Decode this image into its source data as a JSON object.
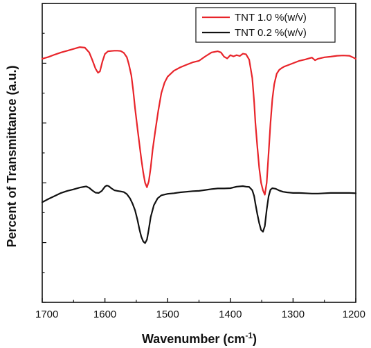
{
  "chart_data": {
    "type": "line",
    "title": "",
    "xlabel": "Wavenumber (cm",
    "xlabel_sup": "-1",
    "xlabel_close": ")",
    "ylabel": "Percent of Transmittance (a.u.)",
    "xlim": [
      1700,
      1200
    ],
    "x_reversed": true,
    "xticks": [
      1700,
      1600,
      1500,
      1400,
      1300,
      1200
    ],
    "y_tick_labels_shown": false,
    "ylim": [
      0,
      100
    ],
    "grid": false,
    "legend_position": "top-right",
    "series": [
      {
        "name": "TNT 1.0 %(w/v)",
        "color": "#e8242a",
        "x": [
          1700,
          1690,
          1680,
          1670,
          1660,
          1650,
          1640,
          1632,
          1625,
          1620,
          1615,
          1611,
          1608,
          1604,
          1600,
          1595,
          1590,
          1585,
          1580,
          1575,
          1570,
          1565,
          1562,
          1558,
          1555,
          1552,
          1548,
          1545,
          1542,
          1539,
          1536,
          1533,
          1530,
          1527,
          1524,
          1520,
          1515,
          1510,
          1505,
          1500,
          1490,
          1480,
          1470,
          1460,
          1450,
          1440,
          1430,
          1420,
          1415,
          1410,
          1405,
          1400,
          1395,
          1390,
          1385,
          1380,
          1375,
          1370,
          1365,
          1362,
          1360,
          1357,
          1354,
          1351,
          1348,
          1345,
          1342,
          1339,
          1336,
          1333,
          1330,
          1326,
          1322,
          1318,
          1314,
          1310,
          1300,
          1290,
          1280,
          1270,
          1265,
          1260,
          1250,
          1240,
          1230,
          1220,
          1210,
          1200
        ],
        "y": [
          81.5,
          82.1,
          82.9,
          83.6,
          84.2,
          84.8,
          85.4,
          85.2,
          83.6,
          81.0,
          78.2,
          76.8,
          77.3,
          80.6,
          83.1,
          84.0,
          84.1,
          84.2,
          84.2,
          84.1,
          83.5,
          82.0,
          79.8,
          76.0,
          71.0,
          65.0,
          58.0,
          53.0,
          48.0,
          43.5,
          40.0,
          38.5,
          40.5,
          45.0,
          51.0,
          57.0,
          64.0,
          70.0,
          73.5,
          75.5,
          77.5,
          78.6,
          79.5,
          80.3,
          80.8,
          82.3,
          83.6,
          84.0,
          83.6,
          82.2,
          81.6,
          82.7,
          82.3,
          82.7,
          82.4,
          83.2,
          83.0,
          81.2,
          75.0,
          67.0,
          60.0,
          52.0,
          45.0,
          40.0,
          37.5,
          36.0,
          40.0,
          50.0,
          60.0,
          68.0,
          73.0,
          76.5,
          77.8,
          78.4,
          78.9,
          79.2,
          80.0,
          80.8,
          81.3,
          81.9,
          81.0,
          81.5,
          82.0,
          82.2,
          82.5,
          82.6,
          82.5,
          81.5
        ]
      },
      {
        "name": "TNT 0.2 %(w/v)",
        "color": "#111111",
        "x": [
          1700,
          1690,
          1680,
          1670,
          1660,
          1650,
          1640,
          1630,
          1625,
          1620,
          1615,
          1610,
          1605,
          1600,
          1597,
          1594,
          1590,
          1585,
          1580,
          1575,
          1570,
          1565,
          1560,
          1556,
          1552,
          1548,
          1545,
          1542,
          1539,
          1536,
          1533,
          1530,
          1527,
          1522,
          1516,
          1510,
          1500,
          1490,
          1480,
          1470,
          1460,
          1450,
          1440,
          1430,
          1420,
          1410,
          1400,
          1390,
          1380,
          1375,
          1370,
          1365,
          1362,
          1360,
          1357,
          1354,
          1351,
          1348,
          1345,
          1342,
          1339,
          1336,
          1333,
          1328,
          1322,
          1316,
          1310,
          1300,
          1290,
          1280,
          1270,
          1260,
          1250,
          1240,
          1230,
          1220,
          1210,
          1200
        ],
        "y": [
          33.5,
          34.6,
          35.6,
          36.6,
          37.3,
          37.8,
          38.4,
          38.8,
          38.3,
          37.4,
          36.7,
          36.6,
          37.3,
          38.7,
          39.1,
          38.9,
          38.2,
          37.5,
          37.3,
          37.1,
          36.9,
          36.2,
          34.8,
          33.0,
          30.8,
          27.5,
          24.5,
          22.0,
          20.4,
          19.8,
          21.0,
          24.5,
          28.5,
          32.5,
          34.8,
          35.8,
          36.3,
          36.5,
          36.8,
          37.0,
          37.2,
          37.3,
          37.6,
          37.9,
          38.1,
          38.1,
          38.2,
          38.7,
          38.9,
          38.7,
          38.6,
          37.5,
          35.5,
          33.0,
          29.5,
          26.5,
          24.2,
          23.6,
          25.5,
          31.0,
          35.5,
          37.7,
          38.2,
          38.0,
          37.4,
          37.0,
          36.8,
          36.6,
          36.6,
          36.5,
          36.4,
          36.4,
          36.5,
          36.6,
          36.6,
          36.6,
          36.6,
          36.5
        ]
      }
    ]
  }
}
